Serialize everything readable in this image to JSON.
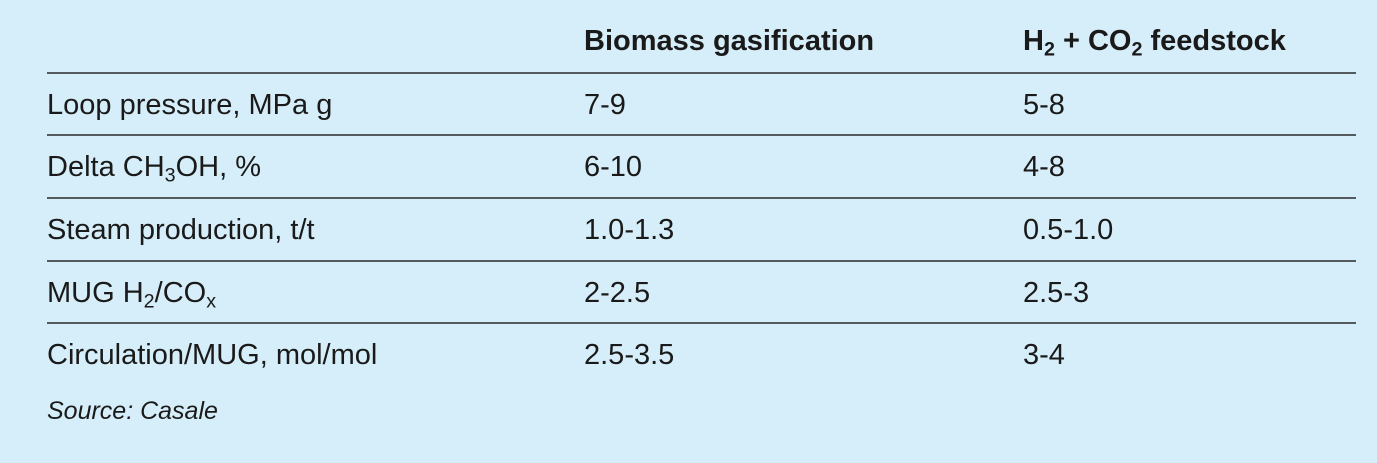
{
  "table": {
    "headers": {
      "col1": "",
      "col2": "Biomass gasification",
      "col3": {
        "a": "H",
        "a_sub": "2",
        "b": " + CO",
        "b_sub": "2",
        "c": " feedstock"
      }
    },
    "rows": [
      {
        "label": {
          "text": "Loop pressure, MPa g"
        },
        "biomass": "7-9",
        "h2co2": "5-8"
      },
      {
        "label": {
          "pre": "Delta CH",
          "sub": "3",
          "post": "OH, %"
        },
        "biomass": "6-10",
        "h2co2": "4-8"
      },
      {
        "label": {
          "text": "Steam production, t/t"
        },
        "biomass": "1.0-1.3",
        "h2co2": "0.5-1.0"
      },
      {
        "label": {
          "pre": "MUG H",
          "sub": "2",
          "mid": "/CO",
          "sub2": "x"
        },
        "biomass": "2-2.5",
        "h2co2": "2.5-3"
      },
      {
        "label": {
          "text": "Circulation/MUG, mol/mol"
        },
        "biomass": "2.5-3.5",
        "h2co2": "3-4"
      }
    ]
  },
  "source": "Source: Casale"
}
